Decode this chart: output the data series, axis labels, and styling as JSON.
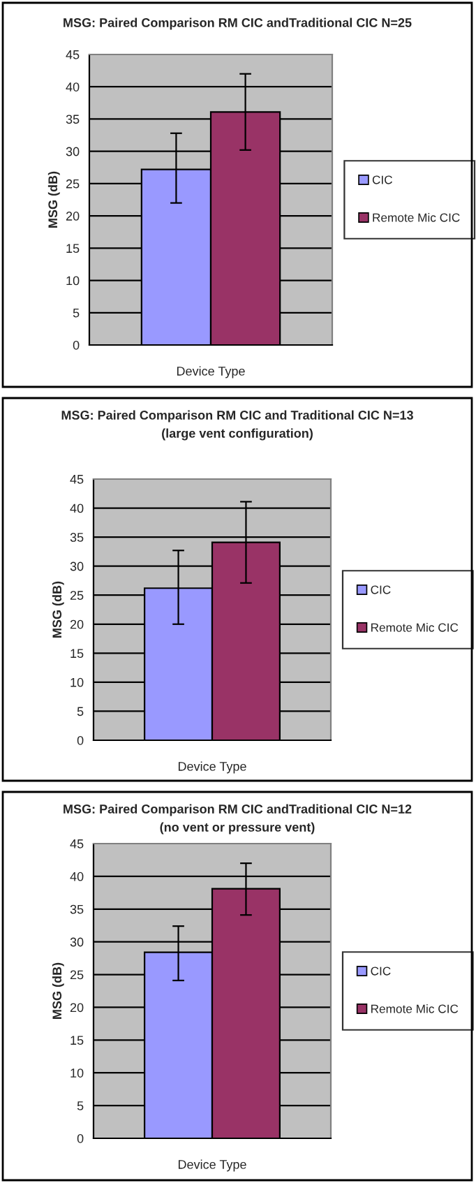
{
  "chart_data": [
    {
      "type": "bar",
      "title": "MSG: Paired Comparison RM CIC andTraditional CIC N=25",
      "xlabel": "Device Type",
      "ylabel": "MSG (dB)",
      "categories": [
        null
      ],
      "ylim": [
        0,
        45
      ],
      "yticks": [
        0,
        5,
        10,
        15,
        20,
        25,
        30,
        35,
        40,
        45
      ],
      "grid": "y",
      "legend": "right",
      "series": [
        {
          "name": "CIC",
          "color": "#9999ff",
          "values": [
            27.2
          ],
          "errors": [
            [
              22,
              32.8
            ]
          ]
        },
        {
          "name": "Remote Mic CIC",
          "color": "#993366",
          "values": [
            36.1
          ],
          "errors": [
            [
              30.2,
              42
            ]
          ]
        }
      ]
    },
    {
      "type": "bar",
      "title": "MSG: Paired Comparison RM CIC and Traditional CIC N=13",
      "subtitle": "(large vent configuration)",
      "xlabel": "Device Type",
      "ylabel": "MSG (dB)",
      "categories": [
        null
      ],
      "ylim": [
        0,
        45
      ],
      "yticks": [
        0,
        5,
        10,
        15,
        20,
        25,
        30,
        35,
        40,
        45
      ],
      "grid": "y",
      "legend": "right",
      "series": [
        {
          "name": "CIC",
          "color": "#9999ff",
          "values": [
            26.2
          ],
          "errors": [
            [
              20,
              32.7
            ]
          ]
        },
        {
          "name": "Remote Mic CIC",
          "color": "#993366",
          "values": [
            34.1
          ],
          "errors": [
            [
              27.1,
              41.1
            ]
          ]
        }
      ]
    },
    {
      "type": "bar",
      "title": "MSG: Paired Comparison RM CIC andTraditional CIC N=12",
      "subtitle": "(no vent or pressure vent)",
      "xlabel": "Device Type",
      "ylabel": "MSG (dB)",
      "categories": [
        null
      ],
      "ylim": [
        0,
        45
      ],
      "yticks": [
        0,
        5,
        10,
        15,
        20,
        25,
        30,
        35,
        40,
        45
      ],
      "grid": "y",
      "legend": "right",
      "series": [
        {
          "name": "CIC",
          "color": "#9999ff",
          "values": [
            28.4
          ],
          "errors": [
            [
              24.1,
              32.4
            ]
          ]
        },
        {
          "name": "Remote Mic CIC",
          "color": "#993366",
          "values": [
            38.1
          ],
          "errors": [
            [
              34.1,
              42
            ]
          ]
        }
      ]
    }
  ]
}
